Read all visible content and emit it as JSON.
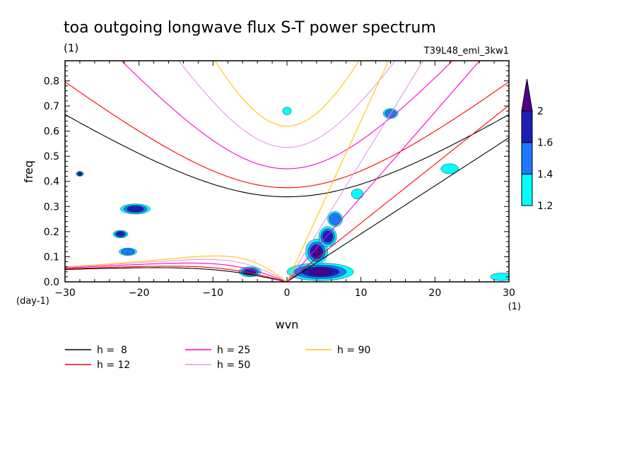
{
  "chart_data": {
    "type": "heatmap",
    "title": "toa outgoing longwave flux S-T power spectrum",
    "units": "(1)",
    "run_label": "T39L48_eml_3kw1",
    "xlabel": "wvn",
    "ylabel": "freq",
    "x_unit_label": "(1)",
    "y_unit_label": "(day-1)",
    "xlim": [
      -30,
      30
    ],
    "ylim": [
      0,
      0.88
    ],
    "x_ticks": [
      -30,
      -20,
      -10,
      0,
      10,
      20,
      30
    ],
    "x_tick_labels": [
      "-30",
      "-20",
      "-10",
      "0",
      "10",
      "20",
      "30"
    ],
    "y_ticks": [
      0.0,
      0.1,
      0.2,
      0.3,
      0.4,
      0.5,
      0.6,
      0.7,
      0.8
    ],
    "y_tick_labels": [
      "0.0",
      "0.1",
      "0.2",
      "0.3",
      "0.4",
      "0.5",
      "0.6",
      "0.7",
      "0.8"
    ],
    "colorbar": {
      "levels": [
        1.2,
        1.4,
        1.6,
        2
      ],
      "labels": [
        "1.2",
        "1.4",
        "1.6",
        "2"
      ],
      "colors": [
        "#00ffff",
        "#1e78ff",
        "#1e1eb4",
        "#50008c"
      ]
    },
    "contour_blobs": [
      {
        "x": 4.5,
        "y": 0.04,
        "rx": 4.5,
        "ry": 0.035,
        "level": 3
      },
      {
        "x": 4.0,
        "y": 0.12,
        "rx": 1.5,
        "ry": 0.05,
        "level": 3
      },
      {
        "x": 5.5,
        "y": 0.18,
        "rx": 1.2,
        "ry": 0.04,
        "level": 2
      },
      {
        "x": 6.5,
        "y": 0.25,
        "rx": 1.0,
        "ry": 0.03,
        "level": 1
      },
      {
        "x": 9.5,
        "y": 0.35,
        "rx": 0.8,
        "ry": 0.02,
        "level": 0
      },
      {
        "x": -5.0,
        "y": 0.04,
        "rx": 1.5,
        "ry": 0.02,
        "level": 2
      },
      {
        "x": -20.5,
        "y": 0.29,
        "rx": 2.0,
        "ry": 0.02,
        "level": 2
      },
      {
        "x": -22.5,
        "y": 0.19,
        "rx": 1.0,
        "ry": 0.015,
        "level": 2
      },
      {
        "x": -21.5,
        "y": 0.12,
        "rx": 1.2,
        "ry": 0.015,
        "level": 1
      },
      {
        "x": -28.0,
        "y": 0.43,
        "rx": 0.5,
        "ry": 0.01,
        "level": 2
      },
      {
        "x": 0,
        "y": 0.68,
        "rx": 0.6,
        "ry": 0.015,
        "level": 0
      },
      {
        "x": 14.0,
        "y": 0.67,
        "rx": 1.0,
        "ry": 0.02,
        "level": 1
      },
      {
        "x": 22.0,
        "y": 0.45,
        "rx": 1.2,
        "ry": 0.02,
        "level": 0
      },
      {
        "x": 29.0,
        "y": 0.02,
        "rx": 1.5,
        "ry": 0.015,
        "level": 0
      }
    ],
    "dispersion_curves": [
      {
        "name": "h =  8",
        "h": 8,
        "color": "#000000"
      },
      {
        "name": "h = 12",
        "h": 12,
        "color": "#ff0000"
      },
      {
        "name": "h = 25",
        "h": 25,
        "color": "#ff00c8"
      },
      {
        "name": "h = 50",
        "h": 50,
        "color": "#e696e6"
      },
      {
        "name": "h = 90",
        "h": 90,
        "color": "#ffc800"
      }
    ]
  }
}
